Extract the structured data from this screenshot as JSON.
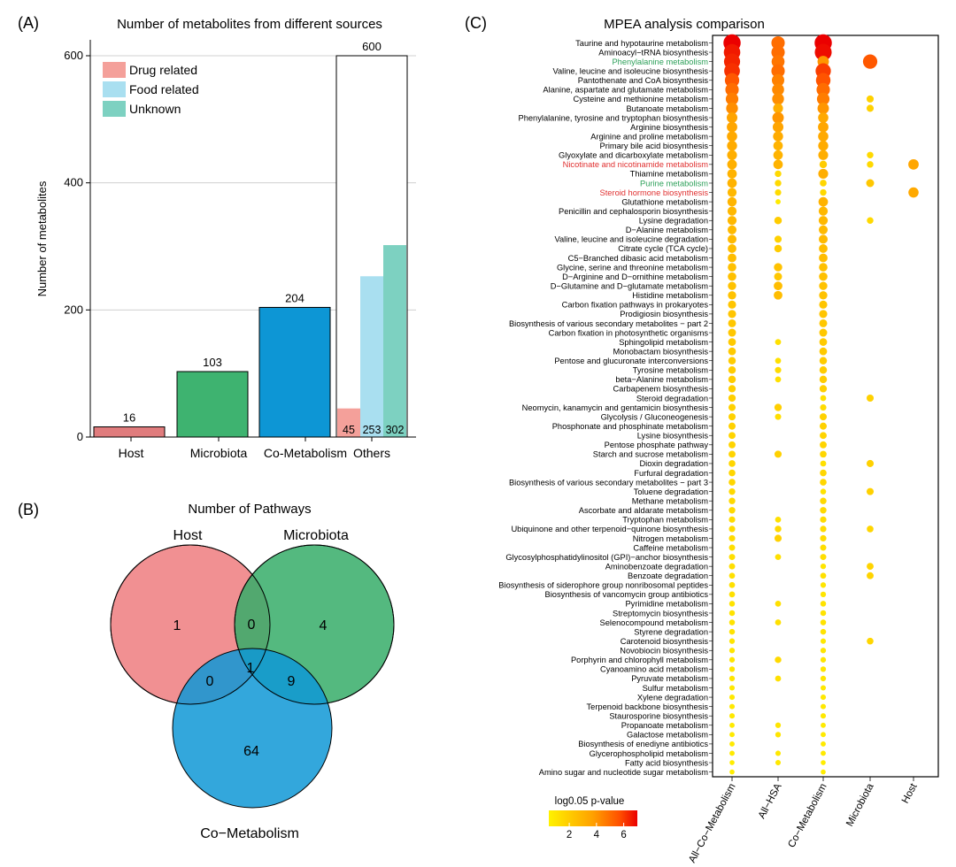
{
  "panel_labels": {
    "a": "(A)",
    "b": "(B)",
    "c": "(C)"
  },
  "chart_data": [
    {
      "type": "bar",
      "title": "Number of  metabolites from different sources",
      "xlabel": "",
      "ylabel": "Number of  metabolites",
      "ylim": [
        0,
        620
      ],
      "yticks": [
        0,
        200,
        400,
        600
      ],
      "grid": true,
      "legend_position": "top-left",
      "legend": [
        {
          "name": "Drug related",
          "color": "#f4a09a"
        },
        {
          "name": "Food related",
          "color": "#a9dff0"
        },
        {
          "name": "Unknown",
          "color": "#7dd1c1"
        }
      ],
      "categories": [
        "Host",
        "Microbiota",
        "Co-Metabolism",
        "Others"
      ],
      "bars": [
        {
          "category": "Host",
          "value": 16,
          "label": "16",
          "color": "#e07c7d"
        },
        {
          "category": "Microbiota",
          "value": 103,
          "label": "103",
          "color": "#3eb370"
        },
        {
          "category": "Co-Metabolism",
          "value": 204,
          "label": "204",
          "color": "#0d96d5"
        },
        {
          "category": "Others",
          "value": 600,
          "label": "600",
          "color": "#ffffff"
        }
      ],
      "others_sub": [
        {
          "name": "Drug related",
          "value": 45,
          "label": "45",
          "color": "#f4a09a"
        },
        {
          "name": "Food related",
          "value": 253,
          "label": "253",
          "color": "#a9dff0"
        },
        {
          "name": "Unknown",
          "value": 302,
          "label": "302",
          "color": "#7dd1c1"
        }
      ]
    },
    {
      "type": "venn",
      "title": "Number of Pathways",
      "sets": [
        {
          "name": "Host",
          "color": "#ef7d7f"
        },
        {
          "name": "Microbiota",
          "color": "#36ad69"
        },
        {
          "name": "Co−Metabolism",
          "color": "#0f98d6"
        }
      ],
      "regions": {
        "host_only": "1",
        "microbiota_only": "4",
        "host_microbiota": "0",
        "host_co": "0",
        "microbiota_co": "9",
        "all_three": "1",
        "co_only": "64"
      }
    },
    {
      "type": "scatter",
      "title": "MPEA analysis comparison",
      "columns": [
        "All−Co−Metabolism",
        "All−HSA",
        "Co−Metabolism",
        "Microbiota",
        "Host"
      ],
      "colorbar_label": "log0.05 p-value",
      "colorbar_ticks": [
        "2",
        "4",
        "6"
      ],
      "color_range": [
        0.5,
        7
      ],
      "pathways": [
        {
          "name": "Taurine and hypotaurine metabolism",
          "c": "#000000",
          "v": [
            7,
            5,
            7,
            0,
            0
          ]
        },
        {
          "name": "Aminoacyl−tRNA biosynthesis",
          "c": "#000000",
          "v": [
            6.6,
            5,
            6.8,
            0,
            0
          ]
        },
        {
          "name": "Phenylalanine metabolism",
          "c": "#2ea05a",
          "v": [
            6.4,
            4.8,
            4,
            5.5,
            0
          ]
        },
        {
          "name": "Valine, leucine and isoleucine biosynthesis",
          "c": "#000000",
          "v": [
            6.2,
            5,
            6,
            0,
            0
          ]
        },
        {
          "name": "Pantothenate and CoA biosynthesis",
          "c": "#000000",
          "v": [
            5.5,
            4.5,
            5.6,
            0,
            0
          ]
        },
        {
          "name": "Alanine, aspartate and glutamate metabolism",
          "c": "#000000",
          "v": [
            5,
            4.3,
            5,
            0,
            0
          ]
        },
        {
          "name": "Cysteine and methionine metabolism",
          "c": "#000000",
          "v": [
            4.6,
            4.2,
            4.6,
            1.8,
            0
          ]
        },
        {
          "name": "Butanoate metabolism",
          "c": "#000000",
          "v": [
            4.2,
            3.2,
            4,
            1.8,
            0
          ]
        },
        {
          "name": "Phenylalanine, tyrosine and tryptophan biosynthesis",
          "c": "#000000",
          "v": [
            3.6,
            4,
            3.4,
            0,
            0
          ]
        },
        {
          "name": "Arginine biosynthesis",
          "c": "#000000",
          "v": [
            3.5,
            3.6,
            3.5,
            0,
            0
          ]
        },
        {
          "name": "Arginine and proline metabolism",
          "c": "#000000",
          "v": [
            3.4,
            3.3,
            3.4,
            0,
            0
          ]
        },
        {
          "name": "Primary bile acid biosynthesis",
          "c": "#000000",
          "v": [
            3.3,
            3,
            3.3,
            0,
            0
          ]
        },
        {
          "name": "Glyoxylate and dicarboxylate metabolism",
          "c": "#000000",
          "v": [
            3.2,
            3,
            3.2,
            1.5,
            0
          ]
        },
        {
          "name": "Nicotinate and nicotinamide metabolism",
          "c": "#e03030",
          "v": [
            3.1,
            3,
            2,
            1.5,
            3.5
          ]
        },
        {
          "name": "Thiamine metabolism",
          "c": "#000000",
          "v": [
            3,
            1.5,
            3.2,
            0,
            0
          ]
        },
        {
          "name": "Purine metabolism",
          "c": "#2ea05a",
          "v": [
            3,
            1.5,
            1.6,
            2.2,
            0
          ]
        },
        {
          "name": "Steroid hormone biosynthesis",
          "c": "#e03030",
          "v": [
            2.8,
            1.4,
            1.5,
            0,
            3.4
          ]
        },
        {
          "name": "Glutathione metabolism",
          "c": "#000000",
          "v": [
            2.9,
            0.8,
            3,
            0,
            0
          ]
        },
        {
          "name": "Penicillin and cephalosporin biosynthesis",
          "c": "#000000",
          "v": [
            2.8,
            0,
            2.8,
            0,
            0
          ]
        },
        {
          "name": "Lysine degradation",
          "c": "#000000",
          "v": [
            2.8,
            2,
            2.8,
            1.5,
            0
          ]
        },
        {
          "name": "D−Alanine metabolism",
          "c": "#000000",
          "v": [
            2.7,
            0,
            2.7,
            0,
            0
          ]
        },
        {
          "name": "Valine, leucine and isoleucine degradation",
          "c": "#000000",
          "v": [
            2.7,
            1.8,
            2.7,
            0,
            0
          ]
        },
        {
          "name": "Citrate cycle (TCA cycle)",
          "c": "#000000",
          "v": [
            2.6,
            2,
            2.6,
            0,
            0
          ]
        },
        {
          "name": "C5−Branched dibasic acid metabolism",
          "c": "#000000",
          "v": [
            2.6,
            0,
            2.6,
            0,
            0
          ]
        },
        {
          "name": "Glycine, serine and threonine metabolism",
          "c": "#000000",
          "v": [
            2.5,
            2.4,
            2.5,
            0,
            0
          ]
        },
        {
          "name": "D−Arginine and D−ornithine metabolism",
          "c": "#000000",
          "v": [
            2.5,
            2.2,
            2.5,
            0,
            0
          ]
        },
        {
          "name": "D−Glutamine and D−glutamate metabolism",
          "c": "#000000",
          "v": [
            2.4,
            2.6,
            2.4,
            0,
            0
          ]
        },
        {
          "name": "Histidine metabolism",
          "c": "#000000",
          "v": [
            2.4,
            2.6,
            2.4,
            0,
            0
          ]
        },
        {
          "name": "Carbon fixation pathways in prokaryotes",
          "c": "#000000",
          "v": [
            2.3,
            0,
            2.3,
            0,
            0
          ]
        },
        {
          "name": "Prodigiosin biosynthesis",
          "c": "#000000",
          "v": [
            2.3,
            0,
            2.3,
            0,
            0
          ]
        },
        {
          "name": "Biosynthesis of various secondary metabolites − part 2",
          "c": "#000000",
          "v": [
            2.2,
            0,
            2.2,
            0,
            0
          ]
        },
        {
          "name": "Carbon fixation in photosynthetic organisms",
          "c": "#000000",
          "v": [
            2.2,
            0,
            2.2,
            0,
            0
          ]
        },
        {
          "name": "Sphingolipid metabolism",
          "c": "#000000",
          "v": [
            2.1,
            1.2,
            2.1,
            0,
            0
          ]
        },
        {
          "name": "Monobactam biosynthesis",
          "c": "#000000",
          "v": [
            2.1,
            0,
            2.1,
            0,
            0
          ]
        },
        {
          "name": "Pentose and glucuronate interconversions",
          "c": "#000000",
          "v": [
            2,
            1.2,
            2,
            0,
            0
          ]
        },
        {
          "name": "Tyrosine metabolism",
          "c": "#000000",
          "v": [
            2,
            1.4,
            2,
            0,
            0
          ]
        },
        {
          "name": "beta−Alanine metabolism",
          "c": "#000000",
          "v": [
            2,
            1.2,
            2,
            0,
            0
          ]
        },
        {
          "name": "Carbapenem biosynthesis",
          "c": "#000000",
          "v": [
            1.9,
            0,
            1.9,
            0,
            0
          ]
        },
        {
          "name": "Steroid degradation",
          "c": "#000000",
          "v": [
            1.9,
            0,
            1.2,
            1.8,
            0
          ]
        },
        {
          "name": "Neomycin, kanamycin and gentamicin biosynthesis",
          "c": "#000000",
          "v": [
            1.8,
            1.9,
            1.4,
            0,
            0
          ]
        },
        {
          "name": "Glycolysis / Gluconeogenesis",
          "c": "#000000",
          "v": [
            1.8,
            1.3,
            1.8,
            0,
            0
          ]
        },
        {
          "name": "Phosphonate and phosphinate metabolism",
          "c": "#000000",
          "v": [
            1.8,
            0,
            1.8,
            0,
            0
          ]
        },
        {
          "name": "Lysine biosynthesis",
          "c": "#000000",
          "v": [
            1.7,
            0,
            1.7,
            0,
            0
          ]
        },
        {
          "name": "Pentose phosphate pathway",
          "c": "#000000",
          "v": [
            1.7,
            0,
            1.7,
            0,
            0
          ]
        },
        {
          "name": "Starch and sucrose metabolism",
          "c": "#000000",
          "v": [
            1.7,
            1.8,
            1.6,
            0,
            0
          ]
        },
        {
          "name": "Dioxin degradation",
          "c": "#000000",
          "v": [
            1.6,
            0,
            1.2,
            1.8,
            0
          ]
        },
        {
          "name": "Furfural degradation",
          "c": "#000000",
          "v": [
            1.6,
            0,
            1.6,
            0,
            0
          ]
        },
        {
          "name": "Biosynthesis of various secondary metabolites − part 3",
          "c": "#000000",
          "v": [
            1.6,
            0,
            1.6,
            0,
            0
          ]
        },
        {
          "name": "Toluene degradation",
          "c": "#000000",
          "v": [
            1.5,
            0,
            1.1,
            1.8,
            0
          ]
        },
        {
          "name": "Methane metabolism",
          "c": "#000000",
          "v": [
            1.5,
            0,
            1.5,
            0,
            0
          ]
        },
        {
          "name": "Ascorbate and aldarate metabolism",
          "c": "#000000",
          "v": [
            1.5,
            0,
            1.5,
            0,
            0
          ]
        },
        {
          "name": "Tryptophan metabolism",
          "c": "#000000",
          "v": [
            1.4,
            1.2,
            1.4,
            0,
            0
          ]
        },
        {
          "name": "Ubiquinone and other terpenoid−quinone biosynthesis",
          "c": "#000000",
          "v": [
            1.4,
            1.5,
            1.4,
            1.6,
            0
          ]
        },
        {
          "name": "Nitrogen metabolism",
          "c": "#000000",
          "v": [
            1.4,
            1.8,
            1.4,
            0,
            0
          ]
        },
        {
          "name": "Caffeine metabolism",
          "c": "#000000",
          "v": [
            1.3,
            0,
            1.3,
            0,
            0
          ]
        },
        {
          "name": "Glycosylphosphatidylinositol (GPI)−anchor biosynthesis",
          "c": "#000000",
          "v": [
            1.3,
            1.2,
            1.3,
            0,
            0
          ]
        },
        {
          "name": "Aminobenzoate degradation",
          "c": "#000000",
          "v": [
            1.3,
            0,
            1,
            1.7,
            0
          ]
        },
        {
          "name": "Benzoate degradation",
          "c": "#000000",
          "v": [
            1.2,
            0,
            1.2,
            1.7,
            0
          ]
        },
        {
          "name": "Biosynthesis of siderophore group nonribosomal peptides",
          "c": "#000000",
          "v": [
            1.2,
            0,
            1,
            0,
            0
          ]
        },
        {
          "name": "Biosynthesis of vancomycin group antibiotics",
          "c": "#000000",
          "v": [
            1.2,
            0,
            1,
            0,
            0
          ]
        },
        {
          "name": "Pyrimidine metabolism",
          "c": "#000000",
          "v": [
            1.1,
            1.2,
            1.1,
            0,
            0
          ]
        },
        {
          "name": "Streptomycin biosynthesis",
          "c": "#000000",
          "v": [
            1.1,
            0,
            1.1,
            0,
            0
          ]
        },
        {
          "name": "Selenocompound metabolism",
          "c": "#000000",
          "v": [
            1.1,
            1.2,
            1.1,
            0,
            0
          ]
        },
        {
          "name": "Styrene degradation",
          "c": "#000000",
          "v": [
            1.1,
            0,
            1.1,
            0,
            0
          ]
        },
        {
          "name": "Carotenoid biosynthesis",
          "c": "#000000",
          "v": [
            1,
            0,
            0.9,
            1.6,
            0
          ]
        },
        {
          "name": "Novobiocin biosynthesis",
          "c": "#000000",
          "v": [
            1,
            0,
            1,
            0,
            0
          ]
        },
        {
          "name": "Porphyrin and chlorophyll metabolism",
          "c": "#000000",
          "v": [
            1,
            1.5,
            1,
            0,
            0
          ]
        },
        {
          "name": "Cyanoamino acid metabolism",
          "c": "#000000",
          "v": [
            1,
            0,
            1,
            0,
            0
          ]
        },
        {
          "name": "Pyruvate metabolism",
          "c": "#000000",
          "v": [
            1,
            1.2,
            1,
            0,
            0
          ]
        },
        {
          "name": "Sulfur metabolism",
          "c": "#000000",
          "v": [
            0.9,
            0,
            0.9,
            0,
            0
          ]
        },
        {
          "name": "Xylene degradation",
          "c": "#000000",
          "v": [
            0.9,
            0,
            0.9,
            0,
            0
          ]
        },
        {
          "name": "Terpenoid backbone biosynthesis",
          "c": "#000000",
          "v": [
            0.9,
            0,
            0.9,
            0,
            0
          ]
        },
        {
          "name": "Staurosporine biosynthesis",
          "c": "#000000",
          "v": [
            0.9,
            0,
            0.9,
            0,
            0
          ]
        },
        {
          "name": "Propanoate metabolism",
          "c": "#000000",
          "v": [
            0.8,
            1,
            0.8,
            0,
            0
          ]
        },
        {
          "name": "Galactose metabolism",
          "c": "#000000",
          "v": [
            0.8,
            1,
            0.8,
            0,
            0
          ]
        },
        {
          "name": "Biosynthesis of enediyne antibiotics",
          "c": "#000000",
          "v": [
            0.8,
            0,
            0.8,
            0,
            0
          ]
        },
        {
          "name": "Glycerophospholipid metabolism",
          "c": "#000000",
          "v": [
            0.8,
            0.9,
            0.8,
            0,
            0
          ]
        },
        {
          "name": "Fatty acid biosynthesis",
          "c": "#000000",
          "v": [
            0.7,
            0.9,
            0.7,
            0,
            0
          ]
        },
        {
          "name": "Amino sugar and nucleotide sugar metabolism",
          "c": "#000000",
          "v": [
            0.7,
            0,
            0.7,
            0,
            0
          ]
        }
      ]
    }
  ]
}
